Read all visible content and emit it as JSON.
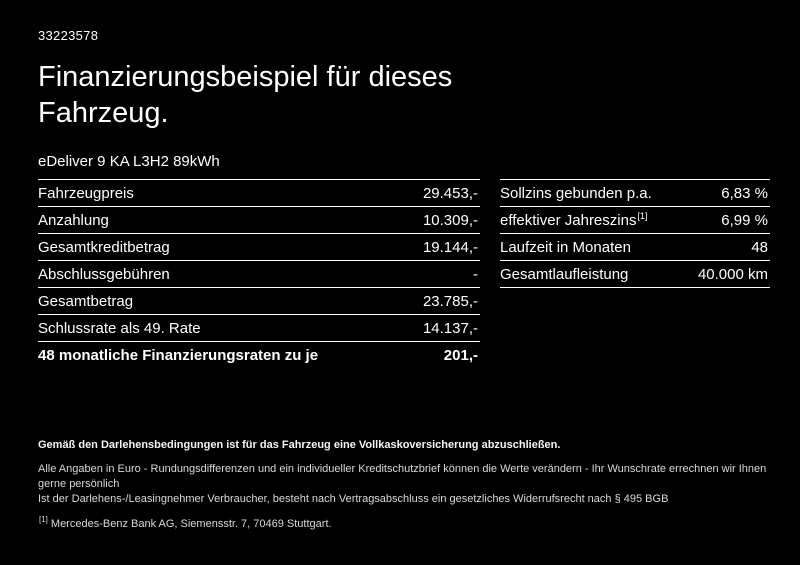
{
  "header": {
    "listing_id": "33223578",
    "title": "Finanzierungsbeispiel für dieses Fahrzeug.",
    "vehicle_name": "eDeliver 9 KA L3H2 89kWh"
  },
  "finance_table": {
    "rows": [
      {
        "label": "Fahrzeugpreis",
        "value": "29.453,-"
      },
      {
        "label": "Anzahlung",
        "value": "10.309,-"
      },
      {
        "label": "Gesamtkreditbetrag",
        "value": "19.144,-"
      },
      {
        "label": "Abschlussgebühren",
        "value": "-"
      },
      {
        "label": "Gesamtbetrag",
        "value": "23.785,-"
      },
      {
        "label": "Schlussrate als 49. Rate",
        "value": "14.137,-"
      },
      {
        "label": "48 monatliche Finanzierungsraten zu je",
        "value": "201,-"
      }
    ]
  },
  "conditions_table": {
    "rows": [
      {
        "label": "Sollzins gebunden p.a.",
        "sup": "",
        "value": "6,83 %"
      },
      {
        "label": "effektiver Jahreszins",
        "sup": "[1]",
        "value": "6,99 %"
      },
      {
        "label": "Laufzeit in Monaten",
        "sup": "",
        "value": "48"
      },
      {
        "label": "Gesamtlaufleistung",
        "sup": "",
        "value": "40.000 km"
      }
    ]
  },
  "footer": {
    "bold_note": "Gemäß den Darlehensbedingungen ist für das Fahrzeug eine Vollkaskoversicherung abzuschließen.",
    "note_2": "Alle Angaben in Euro - Rundungsdifferenzen und ein individueller Kreditschutzbrief können die Werte verändern - Ihr Wunschrate errechnen wir Ihnen gerne persönlich",
    "note_3": "Ist der Darlehens-/Leasingnehmer Verbraucher, besteht nach Vertragsabschluss ein gesetzliches Widerrufsrecht nach § 495 BGB",
    "footnote_marker": "[1]",
    "footnote_text": "Mercedes-Benz Bank AG, Siemensstr. 7, 70469 Stuttgart."
  },
  "colors": {
    "background": "#000000",
    "text": "#ffffff",
    "divider": "#ffffff"
  }
}
